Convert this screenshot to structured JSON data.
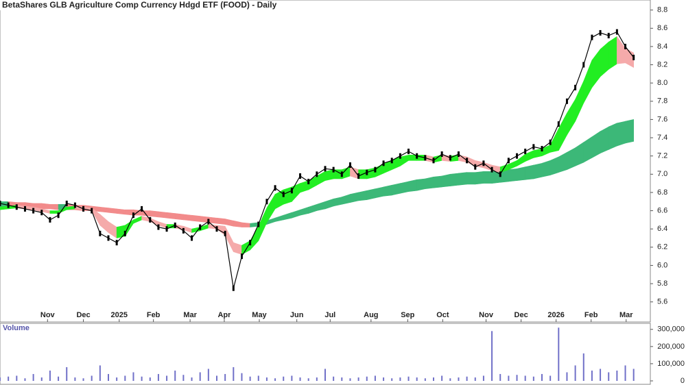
{
  "chart_data": [
    {
      "type": "line",
      "title": "BetaShares GLB Agriculture Comp Currency Hdgd ETF (FOOD) - Daily",
      "color": "#000000",
      "x": [
        0,
        1,
        2,
        3,
        4,
        5,
        6,
        7,
        8,
        9,
        10,
        11,
        12,
        13,
        14,
        15,
        16,
        17,
        18,
        19,
        20,
        21,
        22,
        23,
        24,
        25,
        26,
        27,
        28,
        29,
        30,
        31,
        32,
        33,
        34,
        35,
        36,
        37,
        38,
        39,
        40,
        41,
        42,
        43,
        44,
        45,
        46,
        47,
        48,
        49,
        50,
        51,
        52,
        53,
        54,
        55,
        56,
        57,
        58,
        59,
        60,
        61,
        62,
        63,
        64,
        65,
        66,
        67,
        68,
        69,
        70,
        71,
        72,
        73,
        74,
        75,
        76
      ],
      "values": [
        6.68,
        6.66,
        6.64,
        6.62,
        6.6,
        6.58,
        6.5,
        6.55,
        6.68,
        6.66,
        6.62,
        6.6,
        6.35,
        6.3,
        6.25,
        6.35,
        6.55,
        6.62,
        6.5,
        6.42,
        6.4,
        6.44,
        6.38,
        6.3,
        6.42,
        6.48,
        6.4,
        6.35,
        5.75,
        6.1,
        6.25,
        6.45,
        6.7,
        6.85,
        6.78,
        6.82,
        6.98,
        6.92,
        7.0,
        7.06,
        7.05,
        7.0,
        7.1,
        6.98,
        7.02,
        7.05,
        7.12,
        7.15,
        7.2,
        7.25,
        7.2,
        7.18,
        7.15,
        7.22,
        7.18,
        7.22,
        7.15,
        7.08,
        7.12,
        7.05,
        7.0,
        7.15,
        7.2,
        7.25,
        7.3,
        7.28,
        7.35,
        7.55,
        7.8,
        7.95,
        8.2,
        8.5,
        8.55,
        8.52,
        8.56,
        8.4,
        8.28
      ],
      "bands": [
        {
          "up_color": "#3cb878",
          "down_color": "#f28b8b",
          "upper": [
            6.7,
            6.7,
            6.69,
            6.69,
            6.68,
            6.68,
            6.67,
            6.67,
            6.67,
            6.66,
            6.66,
            6.65,
            6.64,
            6.63,
            6.62,
            6.61,
            6.61,
            6.6,
            6.6,
            6.59,
            6.58,
            6.57,
            6.56,
            6.55,
            6.54,
            6.53,
            6.52,
            6.51,
            6.49,
            6.47,
            6.46,
            6.47,
            6.49,
            6.52,
            6.55,
            6.58,
            6.61,
            6.64,
            6.67,
            6.7,
            6.73,
            6.75,
            6.78,
            6.8,
            6.82,
            6.84,
            6.86,
            6.88,
            6.9,
            6.92,
            6.94,
            6.95,
            6.97,
            6.98,
            7.0,
            7.01,
            7.02,
            7.02,
            7.03,
            7.03,
            7.04,
            7.05,
            7.06,
            7.08,
            7.1,
            7.12,
            7.15,
            7.19,
            7.24,
            7.29,
            7.35,
            7.41,
            7.47,
            7.52,
            7.56,
            7.58,
            7.6
          ],
          "lower": [
            6.64,
            6.64,
            6.64,
            6.63,
            6.63,
            6.62,
            6.62,
            6.61,
            6.61,
            6.61,
            6.6,
            6.6,
            6.59,
            6.58,
            6.57,
            6.56,
            6.55,
            6.55,
            6.54,
            6.53,
            6.52,
            6.51,
            6.5,
            6.49,
            6.48,
            6.47,
            6.46,
            6.45,
            6.43,
            6.42,
            6.42,
            6.43,
            6.45,
            6.48,
            6.5,
            6.52,
            6.55,
            6.57,
            6.6,
            6.62,
            6.65,
            6.67,
            6.69,
            6.71,
            6.72,
            6.74,
            6.76,
            6.77,
            6.79,
            6.81,
            6.82,
            6.84,
            6.85,
            6.86,
            6.87,
            6.88,
            6.89,
            6.89,
            6.9,
            6.9,
            6.91,
            6.92,
            6.93,
            6.94,
            6.95,
            6.97,
            6.99,
            7.02,
            7.05,
            7.09,
            7.13,
            7.18,
            7.23,
            7.27,
            7.31,
            7.34,
            7.36
          ]
        },
        {
          "up_color": "#22ee22",
          "down_color": "#f5aaaa",
          "upper": [
            6.64,
            6.65,
            6.66,
            6.65,
            6.64,
            6.62,
            6.6,
            6.6,
            6.64,
            6.65,
            6.64,
            6.63,
            6.56,
            6.48,
            6.42,
            6.44,
            6.5,
            6.54,
            6.52,
            6.48,
            6.45,
            6.45,
            6.43,
            6.4,
            6.42,
            6.45,
            6.44,
            6.43,
            6.25,
            6.22,
            6.27,
            6.43,
            6.63,
            6.78,
            6.83,
            6.86,
            6.9,
            6.93,
            6.98,
            7.03,
            7.05,
            7.05,
            7.08,
            7.05,
            7.05,
            7.07,
            7.11,
            7.15,
            7.19,
            7.21,
            7.21,
            7.21,
            7.19,
            7.21,
            7.2,
            7.21,
            7.19,
            7.15,
            7.13,
            7.1,
            7.08,
            7.11,
            7.15,
            7.22,
            7.26,
            7.28,
            7.32,
            7.5,
            7.67,
            7.82,
            8.02,
            8.25,
            8.37,
            8.45,
            8.51,
            8.38,
            8.33
          ],
          "lower": [
            6.61,
            6.62,
            6.63,
            6.62,
            6.61,
            6.59,
            6.57,
            6.57,
            6.61,
            6.62,
            6.61,
            6.6,
            6.44,
            6.36,
            6.3,
            6.32,
            6.46,
            6.5,
            6.48,
            6.44,
            6.41,
            6.41,
            6.39,
            6.36,
            6.38,
            6.41,
            6.4,
            6.33,
            6.15,
            6.12,
            6.17,
            6.27,
            6.47,
            6.62,
            6.67,
            6.7,
            6.8,
            6.83,
            6.88,
            6.93,
            6.95,
            6.95,
            6.98,
            6.95,
            6.95,
            6.97,
            7.01,
            7.05,
            7.09,
            7.15,
            7.15,
            7.15,
            7.13,
            7.15,
            7.14,
            7.15,
            7.13,
            7.09,
            7.07,
            7.04,
            7.02,
            7.05,
            7.09,
            7.14,
            7.18,
            7.2,
            7.24,
            7.26,
            7.43,
            7.58,
            7.78,
            7.95,
            8.07,
            8.15,
            8.21,
            8.22,
            8.17
          ]
        }
      ],
      "xlim": [
        0,
        78
      ],
      "xticks": [
        {
          "value": 5.7,
          "label": "Nov"
        },
        {
          "value": 10,
          "label": "Dec"
        },
        {
          "value": 14.3,
          "label": "2025"
        },
        {
          "value": 18.4,
          "label": "Feb"
        },
        {
          "value": 22.8,
          "label": "Mar"
        },
        {
          "value": 26.9,
          "label": "Apr"
        },
        {
          "value": 31.1,
          "label": "May"
        },
        {
          "value": 35.6,
          "label": "Jun"
        },
        {
          "value": 39.6,
          "label": "Jul"
        },
        {
          "value": 44.5,
          "label": "Aug"
        },
        {
          "value": 48.9,
          "label": "Sep"
        },
        {
          "value": 53.1,
          "label": "Oct"
        },
        {
          "value": 58.3,
          "label": "Nov"
        },
        {
          "value": 62.5,
          "label": "Dec"
        },
        {
          "value": 66.7,
          "label": "2026"
        },
        {
          "value": 70.9,
          "label": "Feb"
        },
        {
          "value": 75.1,
          "label": "Mar"
        }
      ],
      "ylim": [
        5.38,
        8.91
      ],
      "yticks": [
        5.6,
        5.8,
        {
          "value": 6,
          "label": "6.0"
        },
        6.2,
        6.4,
        6.6,
        6.8,
        {
          "value": 7,
          "label": "7.0"
        },
        7.2,
        7.4,
        7.6,
        7.8,
        {
          "value": 8,
          "label": "8.0"
        },
        8.2,
        8.4,
        8.6,
        8.8
      ]
    },
    {
      "type": "bar",
      "title": "Volume",
      "color": "#7070c8",
      "values": [
        20000,
        25000,
        30000,
        15000,
        40000,
        20000,
        60000,
        25000,
        80000,
        20000,
        15000,
        30000,
        90000,
        40000,
        20000,
        30000,
        50000,
        25000,
        20000,
        40000,
        30000,
        60000,
        35000,
        20000,
        50000,
        70000,
        30000,
        40000,
        80000,
        45000,
        25000,
        30000,
        20000,
        15000,
        25000,
        30000,
        20000,
        15000,
        20000,
        70000,
        25000,
        20000,
        15000,
        20000,
        25000,
        30000,
        20000,
        15000,
        20000,
        25000,
        20000,
        15000,
        20000,
        30000,
        15000,
        20000,
        25000,
        20000,
        30000,
        290000,
        40000,
        30000,
        35000,
        30000,
        25000,
        40000,
        30000,
        310000,
        50000,
        90000,
        160000,
        60000,
        70000,
        50000,
        60000,
        90000,
        70000
      ],
      "ylim": [
        -20000,
        335000
      ],
      "yticks": [
        0,
        {
          "value": 100000,
          "label": "100,000"
        },
        {
          "value": 200000,
          "label": "200,000"
        },
        {
          "value": 300000,
          "label": "300,000"
        }
      ]
    }
  ]
}
